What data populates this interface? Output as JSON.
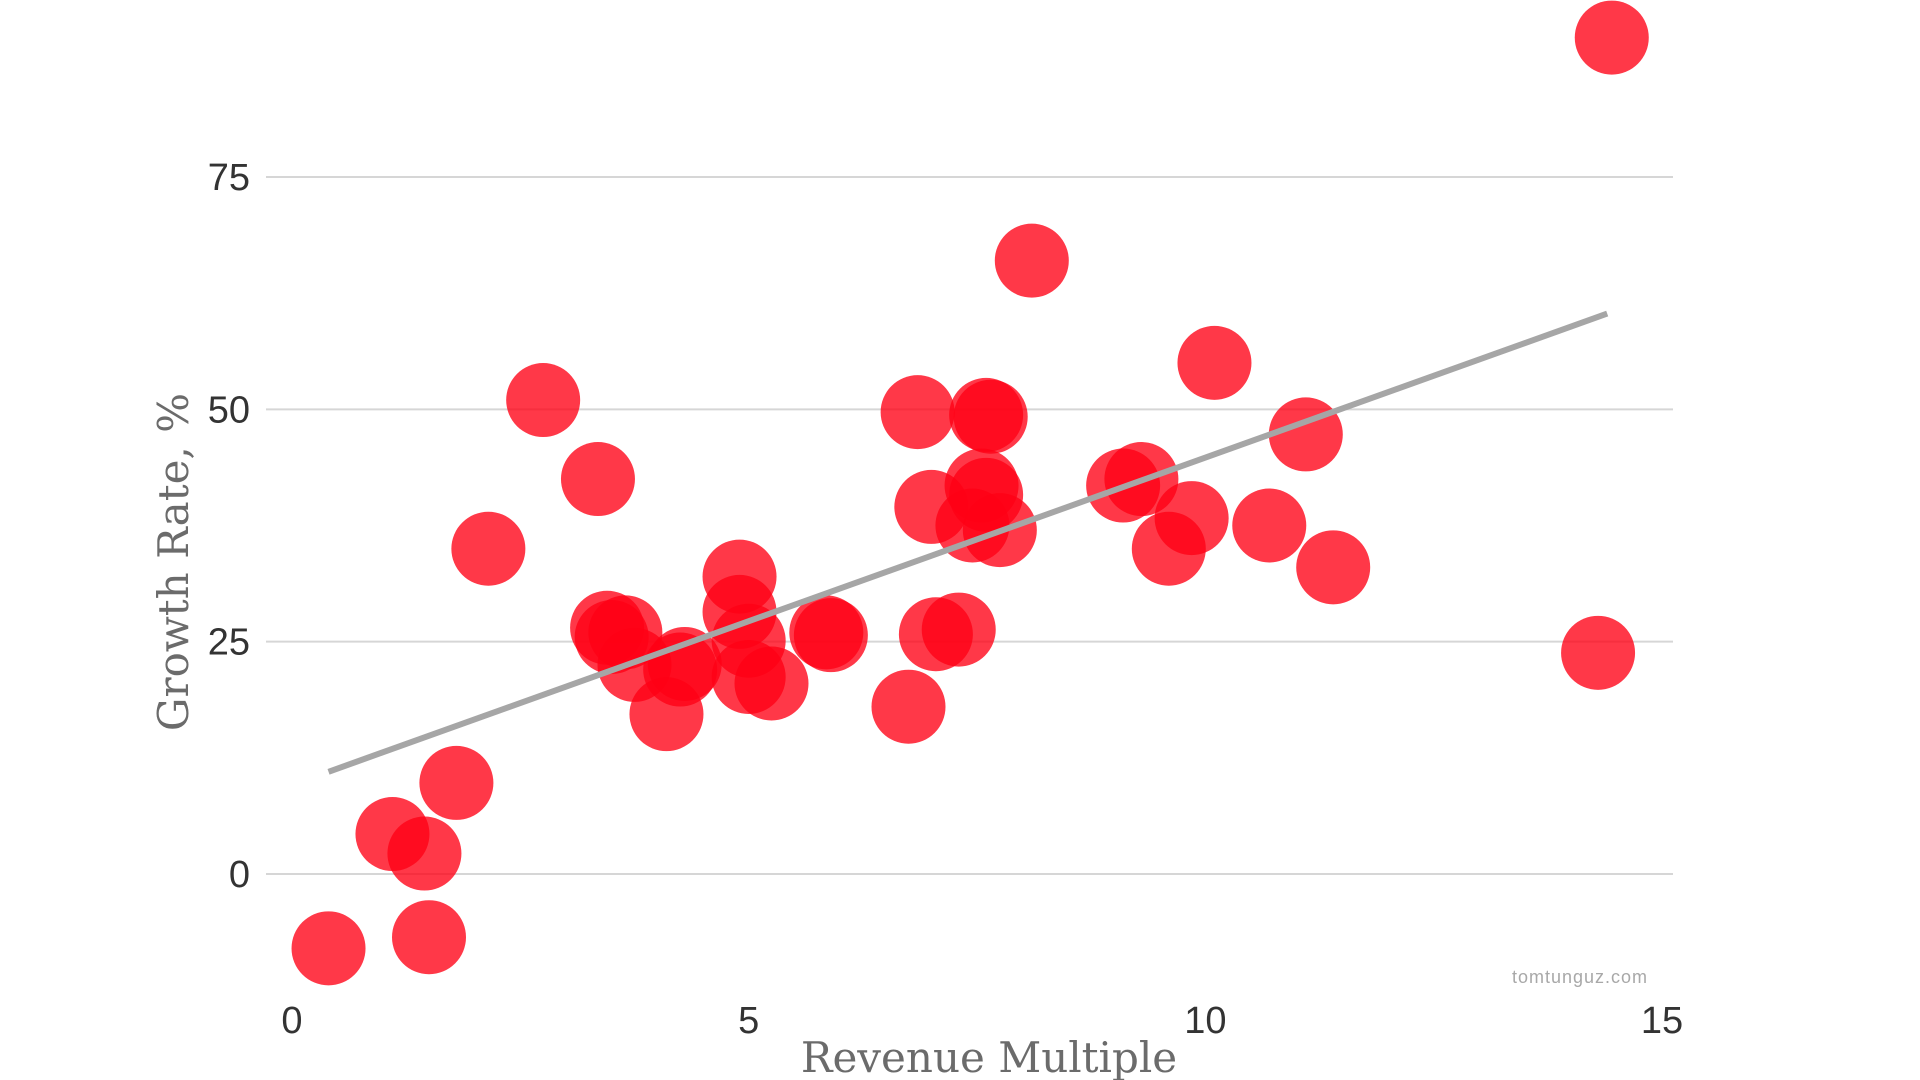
{
  "chart_data": {
    "type": "scatter",
    "title": "",
    "xlabel": "Revenue Multiple",
    "ylabel": "Growth Rate, %",
    "xlim": [
      0,
      15
    ],
    "ylim": [
      -12,
      92
    ],
    "x_ticks": [
      0,
      5,
      10,
      15
    ],
    "y_ticks": [
      0,
      25,
      50,
      75
    ],
    "grid": "horizontal",
    "legend": "none",
    "marker_color": "#ff0015",
    "trendline": {
      "color": "#a6a6a6",
      "points": [
        [
          0.4,
          11
        ],
        [
          14.4,
          60.3
        ]
      ]
    },
    "points": [
      {
        "x": 0.4,
        "y": -8
      },
      {
        "x": 1.1,
        "y": 4.3
      },
      {
        "x": 1.45,
        "y": 2.2
      },
      {
        "x": 1.5,
        "y": -6.8
      },
      {
        "x": 1.8,
        "y": 9.8
      },
      {
        "x": 2.15,
        "y": 35
      },
      {
        "x": 2.75,
        "y": 51
      },
      {
        "x": 3.35,
        "y": 42.5
      },
      {
        "x": 3.45,
        "y": 26.5
      },
      {
        "x": 3.5,
        "y": 25.5
      },
      {
        "x": 3.65,
        "y": 26
      },
      {
        "x": 3.75,
        "y": 22.5
      },
      {
        "x": 4.1,
        "y": 17.2
      },
      {
        "x": 4.25,
        "y": 22
      },
      {
        "x": 4.3,
        "y": 22.6
      },
      {
        "x": 4.9,
        "y": 32
      },
      {
        "x": 4.9,
        "y": 28.2
      },
      {
        "x": 5.0,
        "y": 25.1
      },
      {
        "x": 5.0,
        "y": 21.2
      },
      {
        "x": 5.25,
        "y": 20.5
      },
      {
        "x": 5.85,
        "y": 26
      },
      {
        "x": 5.9,
        "y": 25.7
      },
      {
        "x": 6.75,
        "y": 18
      },
      {
        "x": 6.85,
        "y": 49.7
      },
      {
        "x": 7.0,
        "y": 39.5
      },
      {
        "x": 7.05,
        "y": 25.8
      },
      {
        "x": 7.3,
        "y": 26.3
      },
      {
        "x": 7.45,
        "y": 37.5
      },
      {
        "x": 7.55,
        "y": 41.8
      },
      {
        "x": 7.6,
        "y": 49.4
      },
      {
        "x": 7.6,
        "y": 40.8
      },
      {
        "x": 7.65,
        "y": 49.2
      },
      {
        "x": 7.75,
        "y": 37
      },
      {
        "x": 8.1,
        "y": 66
      },
      {
        "x": 9.1,
        "y": 41.8
      },
      {
        "x": 9.3,
        "y": 42.5
      },
      {
        "x": 9.6,
        "y": 35
      },
      {
        "x": 9.85,
        "y": 38.3
      },
      {
        "x": 10.1,
        "y": 55
      },
      {
        "x": 10.7,
        "y": 37.5
      },
      {
        "x": 11.1,
        "y": 47.3
      },
      {
        "x": 11.4,
        "y": 33
      },
      {
        "x": 14.3,
        "y": 23.8
      },
      {
        "x": 14.45,
        "y": 90
      }
    ]
  },
  "watermark": "tomtunguz.com"
}
